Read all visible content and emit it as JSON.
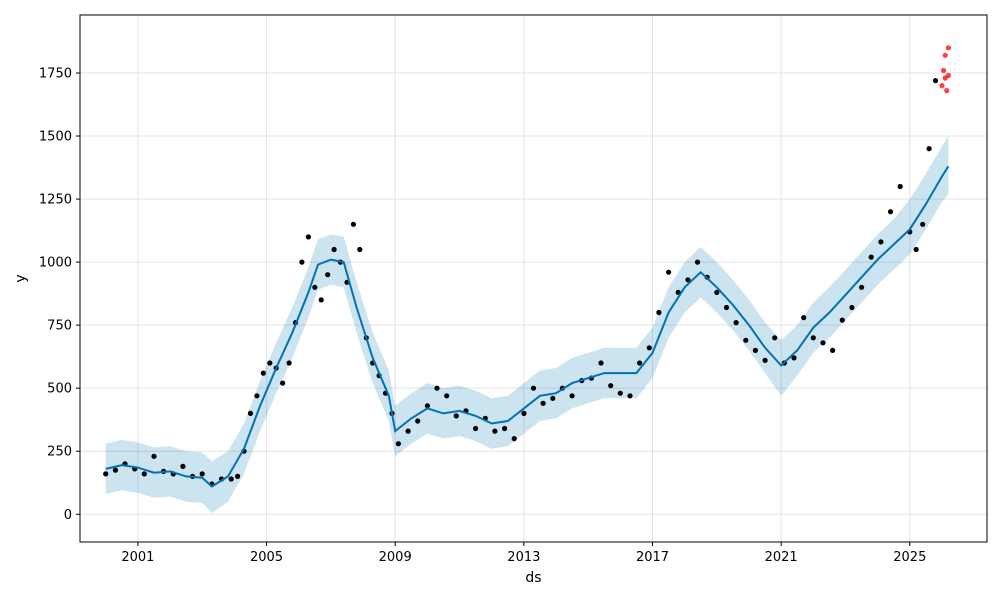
{
  "chart_data": {
    "type": "line",
    "title": "",
    "xlabel": "ds",
    "ylabel": "y",
    "xlim": [
      1999.2,
      2027.4
    ],
    "ylim": [
      -110,
      1980
    ],
    "grid": true,
    "x_ticks": [
      {
        "value": 2001,
        "label": "2001"
      },
      {
        "value": 2005,
        "label": "2005"
      },
      {
        "value": 2009,
        "label": "2009"
      },
      {
        "value": 2013,
        "label": "2013"
      },
      {
        "value": 2017,
        "label": "2017"
      },
      {
        "value": 2021,
        "label": "2021"
      },
      {
        "value": 2025,
        "label": "2025"
      }
    ],
    "y_ticks": [
      {
        "value": 0,
        "label": "0"
      },
      {
        "value": 250,
        "label": "250"
      },
      {
        "value": 500,
        "label": "500"
      },
      {
        "value": 750,
        "label": "750"
      },
      {
        "value": 1000,
        "label": "1000"
      },
      {
        "value": 1250,
        "label": "1250"
      },
      {
        "value": 1500,
        "label": "1500"
      },
      {
        "value": 1750,
        "label": "1750"
      }
    ],
    "forecast": {
      "x": [
        2000.0,
        2000.5,
        2001.0,
        2001.5,
        2002.0,
        2002.5,
        2003.0,
        2003.3,
        2003.8,
        2004.3,
        2004.8,
        2005.3,
        2005.8,
        2006.3,
        2006.6,
        2007.0,
        2007.4,
        2007.8,
        2008.3,
        2008.8,
        2009.0,
        2009.5,
        2010.0,
        2010.5,
        2011.0,
        2011.5,
        2012.0,
        2012.5,
        2013.0,
        2013.5,
        2014.0,
        2014.5,
        2015.0,
        2015.5,
        2016.0,
        2016.5,
        2017.0,
        2017.5,
        2018.0,
        2018.5,
        2019.0,
        2019.5,
        2020.0,
        2020.5,
        2021.0,
        2021.5,
        2022.0,
        2022.5,
        2023.0,
        2023.5,
        2024.0,
        2024.5,
        2025.0,
        2025.5,
        2026.0,
        2026.2
      ],
      "yhat": [
        180,
        195,
        185,
        165,
        170,
        150,
        145,
        110,
        150,
        260,
        430,
        580,
        720,
        880,
        990,
        1010,
        1000,
        820,
        620,
        470,
        330,
        380,
        420,
        400,
        410,
        390,
        360,
        370,
        420,
        470,
        480,
        520,
        540,
        560,
        560,
        560,
        640,
        800,
        900,
        960,
        900,
        830,
        750,
        660,
        590,
        650,
        740,
        800,
        870,
        940,
        1010,
        1070,
        1130,
        1230,
        1340,
        1380
      ],
      "upper": [
        280,
        295,
        285,
        265,
        270,
        250,
        245,
        210,
        250,
        360,
        530,
        680,
        820,
        980,
        1090,
        1110,
        1100,
        920,
        720,
        570,
        430,
        480,
        520,
        500,
        510,
        490,
        460,
        470,
        520,
        570,
        580,
        620,
        640,
        660,
        660,
        660,
        740,
        900,
        1000,
        1060,
        1000,
        930,
        850,
        760,
        690,
        750,
        840,
        900,
        970,
        1040,
        1110,
        1170,
        1250,
        1350,
        1460,
        1500
      ],
      "lower": [
        80,
        95,
        85,
        65,
        70,
        50,
        45,
        5,
        50,
        160,
        330,
        480,
        620,
        780,
        890,
        910,
        900,
        720,
        520,
        370,
        230,
        280,
        320,
        300,
        310,
        290,
        260,
        270,
        320,
        370,
        380,
        420,
        440,
        460,
        460,
        460,
        540,
        700,
        800,
        860,
        800,
        730,
        650,
        560,
        470,
        550,
        640,
        700,
        770,
        840,
        910,
        970,
        1030,
        1130,
        1240,
        1270
      ]
    },
    "observed": {
      "x": [
        2000.0,
        2000.3,
        2000.6,
        2000.9,
        2001.2,
        2001.5,
        2001.8,
        2002.1,
        2002.4,
        2002.7,
        2003.0,
        2003.3,
        2003.6,
        2003.9,
        2004.1,
        2004.3,
        2004.5,
        2004.7,
        2004.9,
        2005.1,
        2005.3,
        2005.5,
        2005.7,
        2005.9,
        2006.1,
        2006.3,
        2006.5,
        2006.7,
        2006.9,
        2007.1,
        2007.3,
        2007.5,
        2007.7,
        2007.9,
        2008.1,
        2008.3,
        2008.5,
        2008.7,
        2008.9,
        2009.1,
        2009.4,
        2009.7,
        2010.0,
        2010.3,
        2010.6,
        2010.9,
        2011.2,
        2011.5,
        2011.8,
        2012.1,
        2012.4,
        2012.7,
        2013.0,
        2013.3,
        2013.6,
        2013.9,
        2014.2,
        2014.5,
        2014.8,
        2015.1,
        2015.4,
        2015.7,
        2016.0,
        2016.3,
        2016.6,
        2016.9,
        2017.2,
        2017.5,
        2017.8,
        2018.1,
        2018.4,
        2018.7,
        2019.0,
        2019.3,
        2019.6,
        2019.9,
        2020.2,
        2020.5,
        2020.8,
        2021.1,
        2021.4,
        2021.7,
        2022.0,
        2022.3,
        2022.6,
        2022.9,
        2023.2,
        2023.5,
        2023.8,
        2024.1,
        2024.4,
        2024.7,
        2025.0,
        2025.2,
        2025.4,
        2025.6,
        2025.8
      ],
      "y": [
        160,
        175,
        200,
        180,
        160,
        230,
        170,
        160,
        190,
        150,
        160,
        120,
        140,
        140,
        150,
        250,
        400,
        470,
        560,
        600,
        580,
        520,
        600,
        760,
        1000,
        1100,
        900,
        850,
        950,
        1050,
        1000,
        920,
        1150,
        1050,
        700,
        600,
        550,
        480,
        400,
        280,
        330,
        370,
        430,
        500,
        470,
        390,
        410,
        340,
        380,
        330,
        340,
        300,
        400,
        500,
        440,
        460,
        500,
        470,
        530,
        540,
        600,
        510,
        480,
        470,
        600,
        660,
        800,
        960,
        880,
        930,
        1000,
        940,
        880,
        820,
        760,
        690,
        650,
        610,
        700,
        600,
        620,
        780,
        700,
        680,
        650,
        770,
        820,
        900,
        1020,
        1080,
        1200,
        1300,
        1120,
        1050,
        1150,
        1450,
        1720
      ]
    },
    "future_points": {
      "x": [
        2026.0,
        2026.05,
        2026.1,
        2026.1,
        2026.15,
        2026.2,
        2026.2
      ],
      "y": [
        1700,
        1760,
        1730,
        1820,
        1680,
        1850,
        1740
      ]
    },
    "colors": {
      "forecast_line": "#0072B2",
      "interval": "#0072B2",
      "observed": "#000000",
      "future": "#ff0000",
      "grid": "#e3e3e3"
    }
  }
}
